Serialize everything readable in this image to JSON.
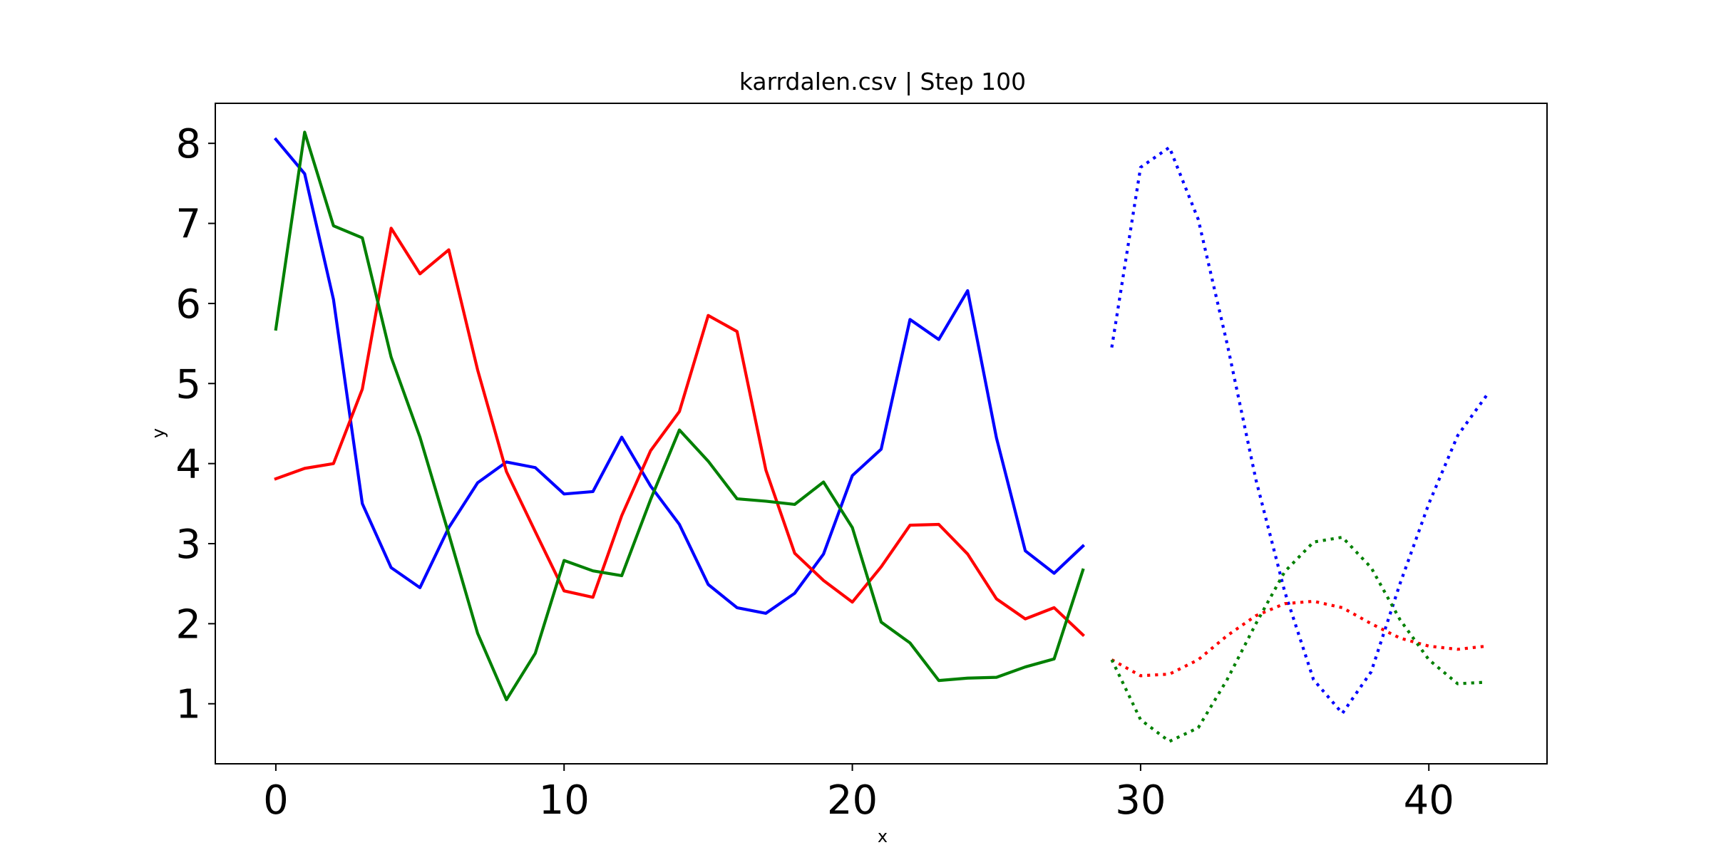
{
  "chart_data": {
    "type": "line",
    "title": "karrdalen.csv | Step 100",
    "xlabel": "x",
    "ylabel": "y",
    "xlim": [
      -2.1,
      44.1
    ],
    "ylim": [
      0.25,
      8.5
    ],
    "xticks": [
      0,
      10,
      20,
      30,
      40
    ],
    "yticks": [
      1,
      2,
      3,
      4,
      5,
      6,
      7,
      8
    ],
    "grid": false,
    "legend": "none",
    "series": [
      {
        "color": "#0000ff",
        "style": "solid",
        "x": [
          0,
          1,
          2,
          3,
          4,
          5,
          6,
          7,
          8,
          9,
          10,
          11,
          12,
          13,
          14,
          15,
          16,
          17,
          18,
          19,
          20,
          21,
          22,
          23,
          24,
          25,
          26,
          27,
          28
        ],
        "values": [
          8.05,
          7.62,
          6.05,
          3.5,
          2.7,
          2.45,
          3.2,
          3.76,
          4.02,
          3.95,
          3.62,
          3.65,
          4.33,
          3.72,
          3.24,
          2.49,
          2.2,
          2.13,
          2.38,
          2.87,
          3.85,
          4.18,
          5.8,
          5.55,
          6.16,
          4.32,
          2.91,
          2.63,
          2.97
        ]
      },
      {
        "color": "#ff0000",
        "style": "solid",
        "x": [
          0,
          1,
          2,
          3,
          4,
          5,
          6,
          7,
          8,
          9,
          10,
          11,
          12,
          13,
          14,
          15,
          16,
          17,
          18,
          19,
          20,
          21,
          22,
          23,
          24,
          25,
          26,
          27,
          28
        ],
        "values": [
          3.81,
          3.94,
          4.0,
          4.93,
          6.94,
          6.37,
          6.67,
          5.17,
          3.9,
          3.15,
          2.41,
          2.33,
          3.35,
          4.16,
          4.65,
          5.85,
          5.65,
          3.92,
          2.88,
          2.54,
          2.27,
          2.71,
          3.23,
          3.24,
          2.87,
          2.31,
          2.06,
          2.2,
          1.86
        ]
      },
      {
        "color": "#008000",
        "style": "solid",
        "x": [
          0,
          1,
          2,
          3,
          4,
          5,
          6,
          7,
          8,
          9,
          10,
          11,
          12,
          13,
          14,
          15,
          16,
          17,
          18,
          19,
          20,
          21,
          22,
          23,
          24,
          25,
          26,
          27,
          28
        ],
        "values": [
          5.68,
          8.14,
          6.97,
          6.82,
          5.33,
          4.33,
          3.12,
          1.88,
          1.05,
          1.63,
          2.79,
          2.66,
          2.6,
          3.55,
          4.42,
          4.03,
          3.56,
          3.53,
          3.49,
          3.77,
          3.2,
          2.02,
          1.76,
          1.29,
          1.32,
          1.33,
          1.46,
          1.56,
          2.67
        ]
      },
      {
        "color": "#0000ff",
        "style": "dotted",
        "x": [
          29,
          30,
          31,
          32,
          33,
          34,
          35,
          36,
          37,
          38,
          39,
          40,
          41,
          42
        ],
        "values": [
          5.45,
          7.7,
          7.95,
          7.05,
          5.5,
          3.8,
          2.4,
          1.3,
          0.88,
          1.4,
          2.5,
          3.5,
          4.35,
          4.85
        ]
      },
      {
        "color": "#ff0000",
        "style": "dotted",
        "x": [
          29,
          30,
          31,
          32,
          33,
          34,
          35,
          36,
          37,
          38,
          39,
          40,
          41,
          42
        ],
        "values": [
          1.55,
          1.35,
          1.37,
          1.55,
          1.85,
          2.1,
          2.25,
          2.28,
          2.2,
          2.0,
          1.82,
          1.72,
          1.68,
          1.72
        ]
      },
      {
        "color": "#008000",
        "style": "dotted",
        "x": [
          29,
          30,
          31,
          32,
          33,
          34,
          35,
          36,
          37,
          38,
          39,
          40,
          41,
          42
        ],
        "values": [
          1.55,
          0.8,
          0.53,
          0.7,
          1.3,
          2.0,
          2.65,
          3.02,
          3.08,
          2.7,
          2.05,
          1.55,
          1.25,
          1.27
        ]
      }
    ]
  }
}
